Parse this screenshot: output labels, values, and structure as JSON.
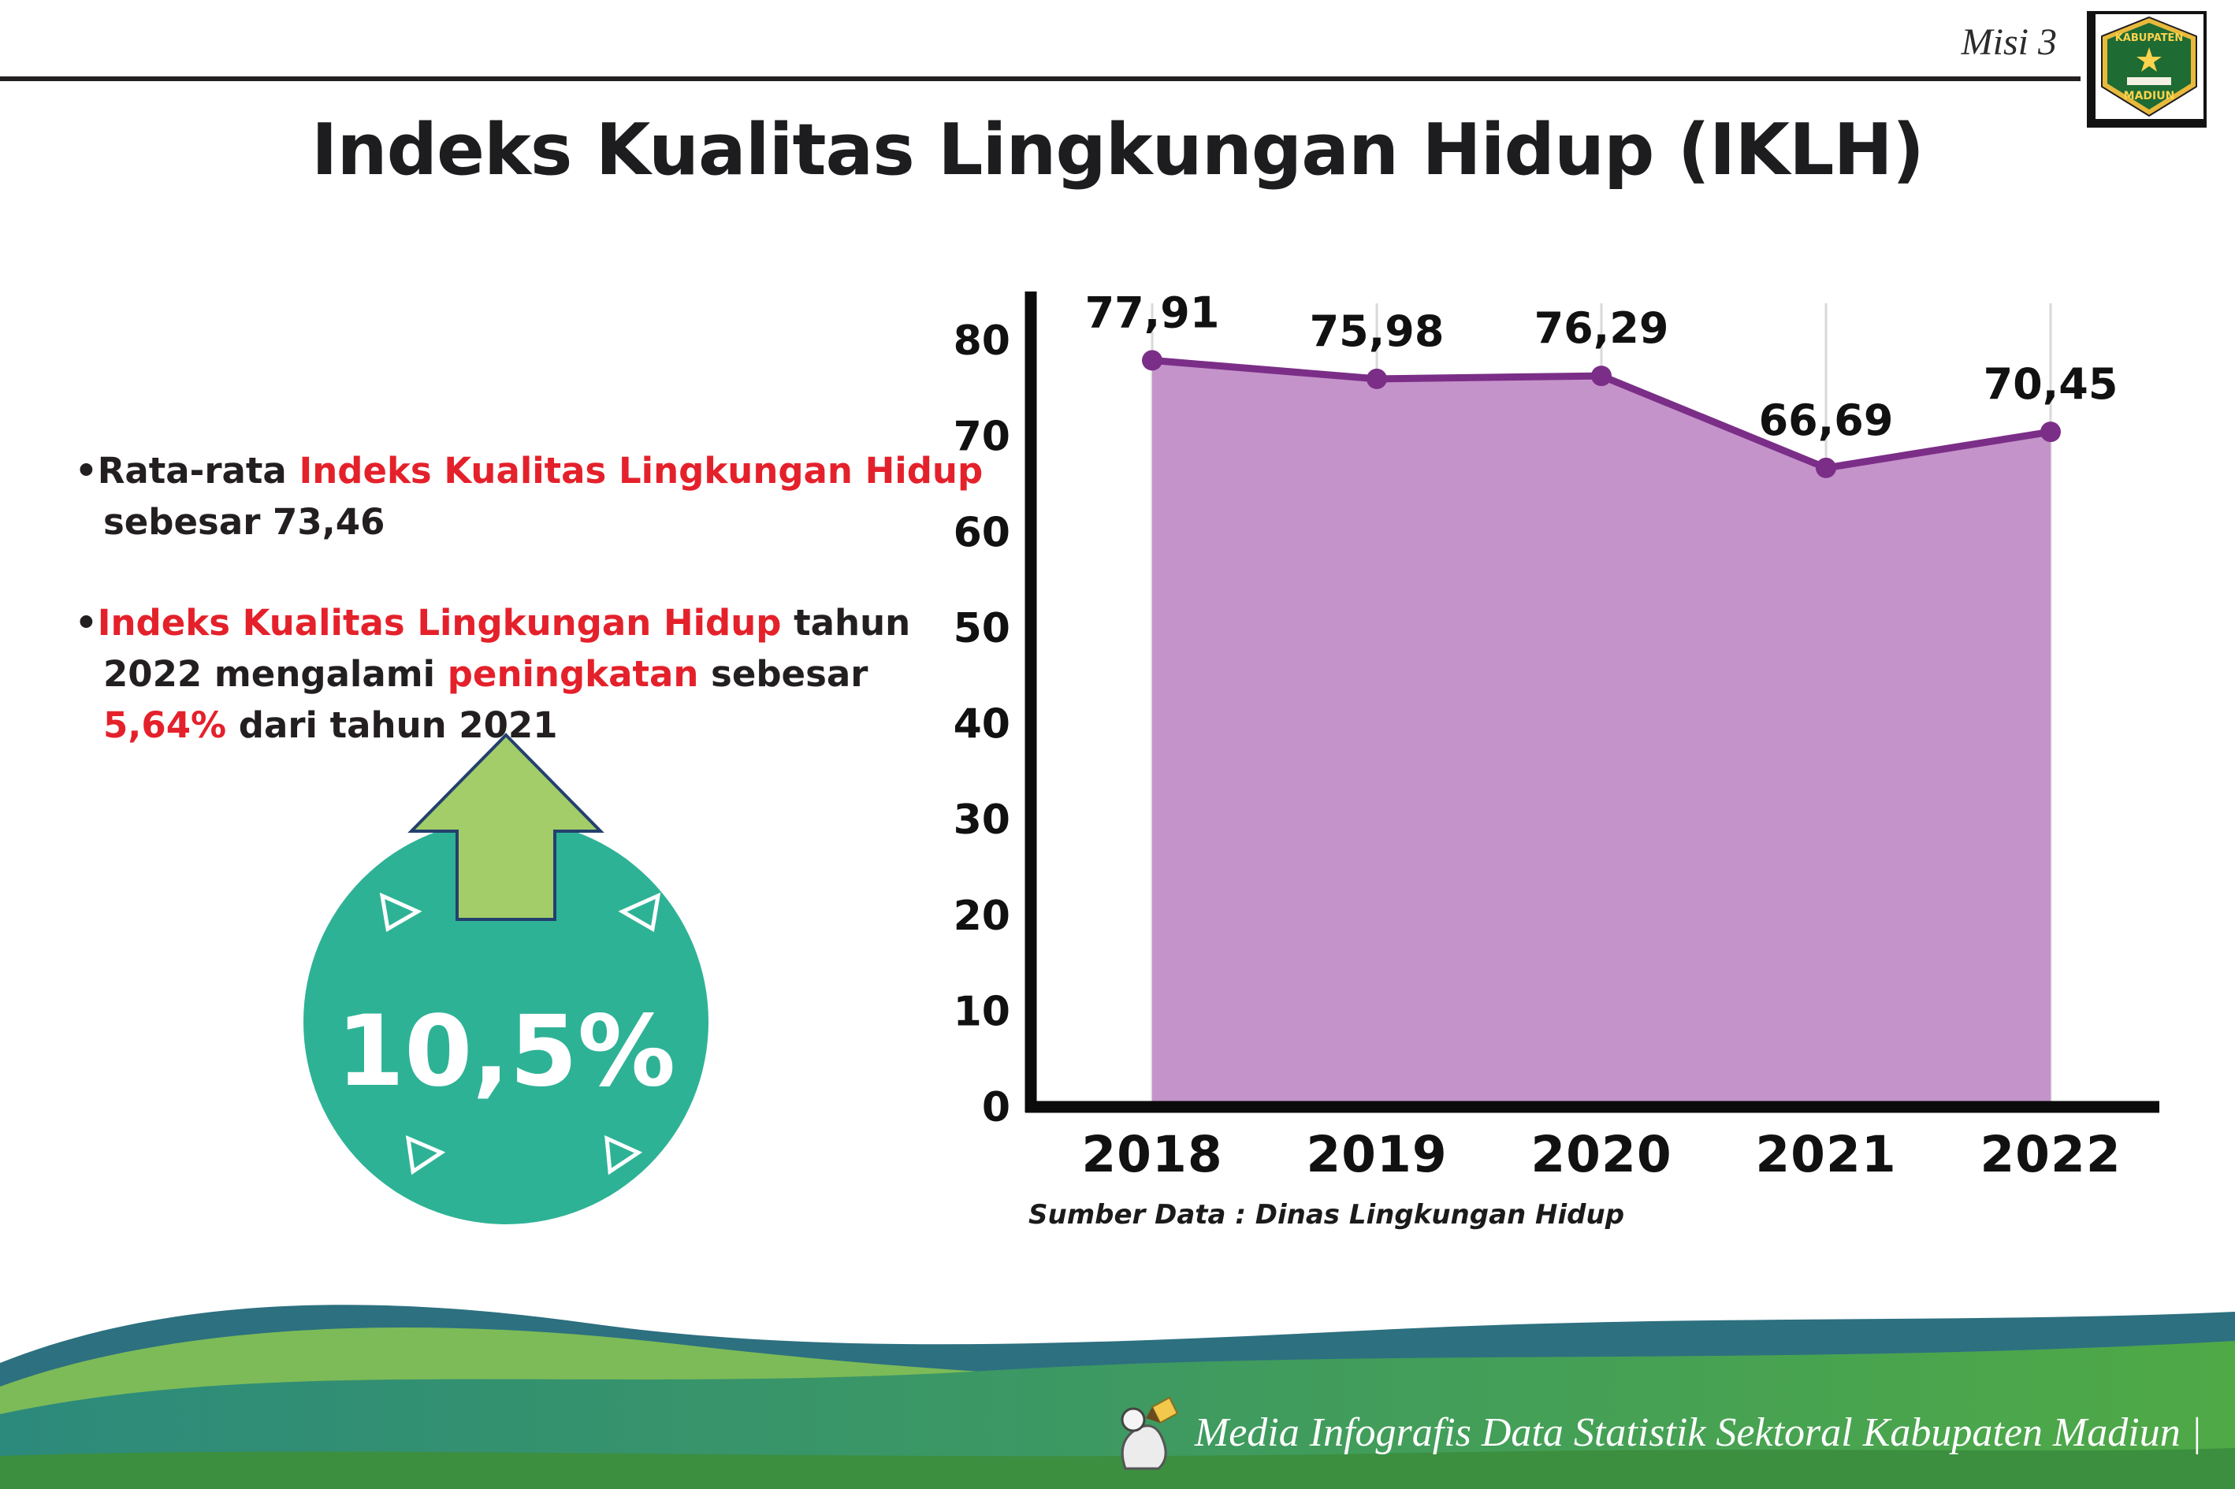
{
  "header": {
    "misi_label": "Misi 3",
    "title": "Indeks Kualitas Lingkungan Hidup (IKLH)",
    "logo": {
      "top_text": "KABUPATEN",
      "bottom_text": "MADIUN"
    }
  },
  "bullets": {
    "marker": "•",
    "bullet1": {
      "seg1": "Rata-rata ",
      "seg2": "Indeks Kualitas Lingkungan Hidup",
      "seg3": " sebesar 73,46"
    },
    "bullet2": {
      "seg1": "Indeks Kualitas Lingkungan Hidup",
      "seg2": " tahun 2022 mengalami ",
      "seg3": "peningkatan",
      "seg4": " sebesar ",
      "seg5": "5,64%",
      "seg6": " dari tahun 2021"
    }
  },
  "badge": {
    "value": "10,5%",
    "circle_color": "#2eb296",
    "arrow_color": "#a3cd68",
    "arrow_outline": "#24406e"
  },
  "chart_data": {
    "type": "area",
    "categories": [
      "2018",
      "2019",
      "2020",
      "2021",
      "2022"
    ],
    "values": [
      77.91,
      75.98,
      76.29,
      66.69,
      70.45
    ],
    "value_labels": [
      "77,91",
      "75,98",
      "76,29",
      "66,69",
      "70,45"
    ],
    "yticks": [
      "0",
      "10",
      "20",
      "30",
      "40",
      "50",
      "60",
      "70",
      "80"
    ],
    "ylim": [
      0,
      80
    ],
    "grid": "vertical",
    "legend": "none",
    "line_color": "#7b2e87",
    "fill_color": "#c493ca",
    "axis_color": "#0b0b0b",
    "source": "Sumber Data : Dinas Lingkungan Hidup"
  },
  "footer": {
    "credit": "Media Infografis Data Statistik Sektoral Kabupaten Madiun |"
  }
}
